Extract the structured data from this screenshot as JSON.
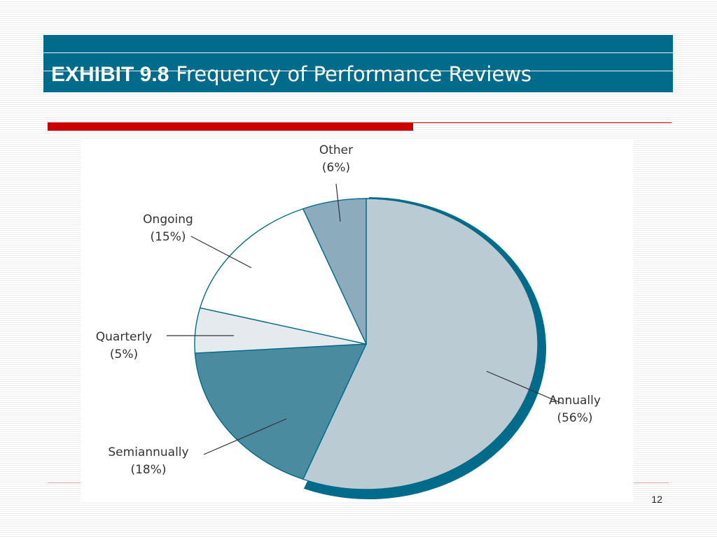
{
  "slide": {
    "exhibit_number": "EXHIBIT 9.8",
    "exhibit_title": "Frequency of Performance Reviews",
    "page_number": "12"
  },
  "chart_data": {
    "type": "pie",
    "title": "",
    "start_angle_deg": 0,
    "direction": "clockwise",
    "slices": [
      {
        "label": "Annually",
        "pct_text": "(56%)",
        "value": 56,
        "color": "#bacbd3"
      },
      {
        "label": "Semiannually",
        "pct_text": "(18%)",
        "value": 18,
        "color": "#4b8ba0"
      },
      {
        "label": "Quarterly",
        "pct_text": "(5%)",
        "value": 5,
        "color": "#e4eaed"
      },
      {
        "label": "Ongoing",
        "pct_text": "(15%)",
        "value": 15,
        "color": "#ffffff"
      },
      {
        "label": "Other",
        "pct_text": "(6%)",
        "value": 6,
        "color": "#8cabbc"
      }
    ],
    "edge_color": "#006b8a",
    "shadow_color": "#006b8a"
  }
}
